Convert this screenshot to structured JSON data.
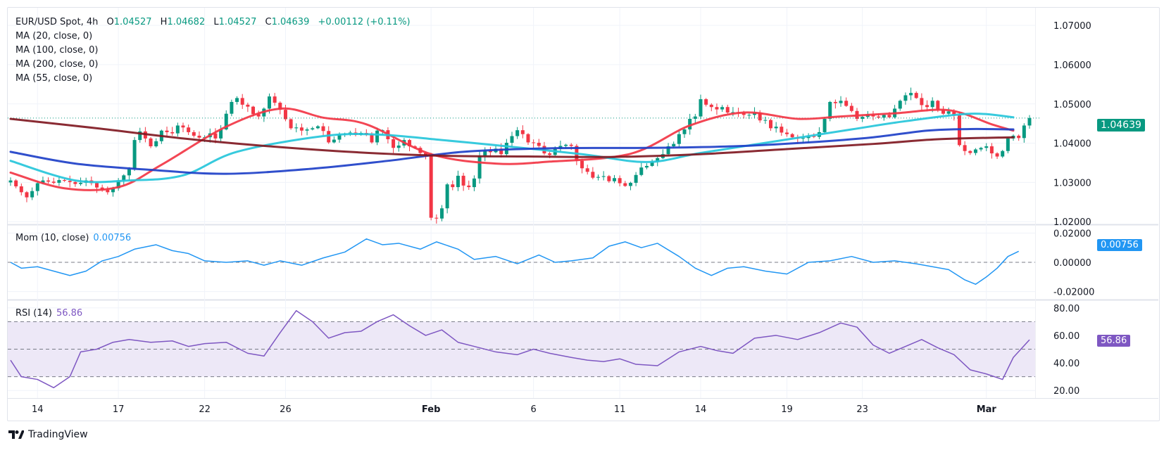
{
  "header": {
    "symbol": "EUR/USD Spot, 4h",
    "open_label": "O",
    "open": "1.04527",
    "high_label": "H",
    "high": "1.04682",
    "low_label": "L",
    "low": "1.04527",
    "close_label": "C",
    "close": "1.04639",
    "change": "+0.00112 (+0.11%)"
  },
  "legend": {
    "ma20": "MA (20, close, 0)",
    "ma100": "MA (100, close, 0)",
    "ma200": "MA (200, close, 0)",
    "ma55": "MA (55, close, 0)",
    "mom_label": "Mom (10, close)",
    "mom_value": "0.00756",
    "rsi_label": "RSI (14)",
    "rsi_value": "56.86"
  },
  "price_tags": {
    "last_price": "1.04639",
    "mom_last": "0.00756",
    "rsi_last": "56.86"
  },
  "colors": {
    "up": "#089981",
    "down": "#f23645",
    "ma20": "#f23645",
    "ma55": "#26c6da",
    "ma100": "#1e40c8",
    "ma200": "#801922",
    "mom": "#2196f3",
    "rsi": "#7e57c2",
    "rsi_band": "#ede8f7"
  },
  "footer": {
    "brand": "TradingView"
  },
  "chart_data": [
    {
      "type": "candlestick",
      "title": "EUR/USD Spot, 4h",
      "ylim": [
        1.02,
        1.073
      ],
      "yticks": [
        "1.07000",
        "1.06000",
        "1.05000",
        "1.04000",
        "1.03000",
        "1.02000"
      ],
      "ytick_values": [
        1.07,
        1.06,
        1.05,
        1.04,
        1.03,
        1.02
      ],
      "xticks": [
        "14",
        "17",
        "22",
        "26",
        "Feb",
        "6",
        "11",
        "14",
        "19",
        "23",
        "Mar"
      ],
      "xtick_index": [
        5,
        20,
        36,
        51,
        78,
        97,
        113,
        128,
        144,
        158,
        181
      ],
      "last_price": 1.04639,
      "close_series": [
        1.0305,
        1.029,
        1.0275,
        1.0262,
        1.0278,
        1.0298,
        1.0305,
        1.0302,
        1.0299,
        1.0306,
        1.0304,
        1.0301,
        1.0296,
        1.0299,
        1.0305,
        1.0298,
        1.0287,
        1.0281,
        1.0275,
        1.0285,
        1.0305,
        1.0318,
        1.0334,
        1.0408,
        1.043,
        1.0412,
        1.0392,
        1.0405,
        1.0432,
        1.0428,
        1.0425,
        1.0445,
        1.044,
        1.0428,
        1.0419,
        1.0414,
        1.0415,
        1.0425,
        1.0412,
        1.0435,
        1.0475,
        1.0505,
        1.0515,
        1.0498,
        1.0493,
        1.0474,
        1.0468,
        1.0488,
        1.0519,
        1.0503,
        1.0485,
        1.0461,
        1.0438,
        1.044,
        1.0432,
        1.0435,
        1.0438,
        1.0443,
        1.0431,
        1.0402,
        1.0409,
        1.0422,
        1.0424,
        1.0427,
        1.0421,
        1.0426,
        1.0421,
        1.0402,
        1.0432,
        1.0433,
        1.041,
        1.0388,
        1.0394,
        1.0408,
        1.0392,
        1.0388,
        1.0375,
        1.0368,
        1.021,
        1.0208,
        1.0234,
        1.0295,
        1.0288,
        1.0317,
        1.0292,
        1.0288,
        1.031,
        1.0368,
        1.0381,
        1.0377,
        1.0386,
        1.0372,
        1.0401,
        1.0418,
        1.0433,
        1.0423,
        1.0402,
        1.0401,
        1.0393,
        1.0374,
        1.037,
        1.0386,
        1.0393,
        1.0396,
        1.0393,
        1.0355,
        1.0336,
        1.0327,
        1.0312,
        1.0314,
        1.0316,
        1.0303,
        1.0311,
        1.0298,
        1.0291,
        1.0299,
        1.0319,
        1.0338,
        1.0342,
        1.0352,
        1.0362,
        1.0372,
        1.0392,
        1.0398,
        1.0423,
        1.0435,
        1.0462,
        1.0468,
        1.0512,
        1.0498,
        1.0492,
        1.0486,
        1.0492,
        1.0478,
        1.0479,
        1.0477,
        1.0472,
        1.0472,
        1.0478,
        1.0458,
        1.0459,
        1.0438,
        1.0442,
        1.0427,
        1.0423,
        1.0415,
        1.0412,
        1.0413,
        1.0418,
        1.0416,
        1.0428,
        1.0462,
        1.0505,
        1.0502,
        1.0508,
        1.0495,
        1.0482,
        1.0462,
        1.0467,
        1.0473,
        1.0468,
        1.0465,
        1.0472,
        1.0466,
        1.0488,
        1.0508,
        1.0522,
        1.0528,
        1.0515,
        1.0497,
        1.0492,
        1.0508,
        1.0485,
        1.0475,
        1.0481,
        1.0471,
        1.0395,
        1.038,
        1.0375,
        1.0384,
        1.0388,
        1.0392,
        1.0374,
        1.0366,
        1.038,
        1.0412,
        1.0419,
        1.0413,
        1.0445,
        1.0464
      ],
      "series": [
        {
          "name": "MA (20, close, 0)",
          "color": "#f23645",
          "points": [
            [
              0,
              1.0325
            ],
            [
              10,
              1.0285
            ],
            [
              20,
              1.0288
            ],
            [
              28,
              1.0345
            ],
            [
              40,
              1.0442
            ],
            [
              50,
              1.0488
            ],
            [
              58,
              1.0465
            ],
            [
              66,
              1.0448
            ],
            [
              78,
              1.0372
            ],
            [
              90,
              1.0348
            ],
            [
              100,
              1.0353
            ],
            [
              115,
              1.0373
            ],
            [
              126,
              1.0445
            ],
            [
              136,
              1.0478
            ],
            [
              146,
              1.0462
            ],
            [
              154,
              1.0468
            ],
            [
              164,
              1.0476
            ],
            [
              174,
              1.0484
            ],
            [
              182,
              1.0448
            ],
            [
              186,
              1.0432
            ]
          ]
        },
        {
          "name": "MA (55, close, 0)",
          "color": "#26c6da",
          "points": [
            [
              0,
              1.0355
            ],
            [
              12,
              1.0305
            ],
            [
              22,
              1.0305
            ],
            [
              32,
              1.0318
            ],
            [
              42,
              1.0378
            ],
            [
              58,
              1.0418
            ],
            [
              68,
              1.0422
            ],
            [
              80,
              1.0408
            ],
            [
              92,
              1.0392
            ],
            [
              106,
              1.0372
            ],
            [
              118,
              1.0352
            ],
            [
              128,
              1.0375
            ],
            [
              142,
              1.0405
            ],
            [
              156,
              1.0435
            ],
            [
              166,
              1.0456
            ],
            [
              178,
              1.0475
            ],
            [
              186,
              1.0466
            ]
          ]
        },
        {
          "name": "MA (100, close, 0)",
          "color": "#1e40c8",
          "points": [
            [
              0,
              1.0378
            ],
            [
              12,
              1.0348
            ],
            [
              26,
              1.0332
            ],
            [
              40,
              1.0322
            ],
            [
              56,
              1.0335
            ],
            [
              70,
              1.0355
            ],
            [
              84,
              1.0378
            ],
            [
              100,
              1.0387
            ],
            [
              118,
              1.0388
            ],
            [
              134,
              1.0392
            ],
            [
              148,
              1.0402
            ],
            [
              160,
              1.0415
            ],
            [
              170,
              1.0432
            ],
            [
              178,
              1.0436
            ],
            [
              186,
              1.0435
            ]
          ]
        },
        {
          "name": "MA (200, close, 0)",
          "color": "#801922",
          "points": [
            [
              0,
              1.0462
            ],
            [
              16,
              1.0438
            ],
            [
              32,
              1.0412
            ],
            [
              48,
              1.0392
            ],
            [
              64,
              1.0377
            ],
            [
              80,
              1.0368
            ],
            [
              96,
              1.0366
            ],
            [
              112,
              1.0365
            ],
            [
              128,
              1.0372
            ],
            [
              144,
              1.0385
            ],
            [
              160,
              1.0398
            ],
            [
              172,
              1.041
            ],
            [
              186,
              1.0415
            ]
          ]
        }
      ]
    },
    {
      "type": "line",
      "title": "Mom (10, close)",
      "ylim": [
        -0.025,
        0.025
      ],
      "yticks": [
        "0.02000",
        "0.00000",
        "-0.02000"
      ],
      "ytick_values": [
        0.02,
        0.0,
        -0.02
      ],
      "last_value": 0.00756,
      "series": [
        {
          "name": "Mom (10, close)",
          "color": "#2196f3",
          "points": [
            [
              0,
              0.0
            ],
            [
              2,
              -0.004
            ],
            [
              5,
              -0.003
            ],
            [
              8,
              -0.006
            ],
            [
              11,
              -0.009
            ],
            [
              14,
              -0.006
            ],
            [
              17,
              0.001
            ],
            [
              20,
              0.004
            ],
            [
              23,
              0.009
            ],
            [
              27,
              0.012
            ],
            [
              30,
              0.008
            ],
            [
              33,
              0.006
            ],
            [
              36,
              0.001
            ],
            [
              40,
              0.0
            ],
            [
              44,
              0.001
            ],
            [
              47,
              -0.002
            ],
            [
              50,
              0.001
            ],
            [
              54,
              -0.002
            ],
            [
              58,
              0.003
            ],
            [
              62,
              0.007
            ],
            [
              66,
              0.016
            ],
            [
              69,
              0.012
            ],
            [
              72,
              0.013
            ],
            [
              76,
              0.009
            ],
            [
              79,
              0.014
            ],
            [
              83,
              0.009
            ],
            [
              86,
              0.002
            ],
            [
              90,
              0.004
            ],
            [
              94,
              -0.001
            ],
            [
              98,
              0.005
            ],
            [
              101,
              0.0
            ],
            [
              104,
              0.001
            ],
            [
              108,
              0.003
            ],
            [
              111,
              0.011
            ],
            [
              114,
              0.014
            ],
            [
              117,
              0.01
            ],
            [
              120,
              0.013
            ],
            [
              124,
              0.004
            ],
            [
              127,
              -0.004
            ],
            [
              130,
              -0.009
            ],
            [
              133,
              -0.004
            ],
            [
              136,
              -0.003
            ],
            [
              140,
              -0.006
            ],
            [
              144,
              -0.008
            ],
            [
              148,
              0.0
            ],
            [
              152,
              0.001
            ],
            [
              156,
              0.004
            ],
            [
              160,
              0.0
            ],
            [
              164,
              0.001
            ],
            [
              168,
              -0.001
            ],
            [
              171,
              -0.003
            ],
            [
              174,
              -0.005
            ],
            [
              177,
              -0.012
            ],
            [
              179,
              -0.015
            ],
            [
              181,
              -0.01
            ],
            [
              183,
              -0.004
            ],
            [
              185,
              0.004
            ],
            [
              187,
              0.00756
            ]
          ]
        }
      ]
    },
    {
      "type": "line",
      "title": "RSI (14)",
      "ylim": [
        15,
        85
      ],
      "yticks": [
        "80.00",
        "60.00",
        "40.00",
        "20.00"
      ],
      "ytick_values": [
        80,
        60,
        40,
        20
      ],
      "bands": [
        30,
        50,
        70
      ],
      "last_value": 56.86,
      "series": [
        {
          "name": "RSI (14)",
          "color": "#7e57c2",
          "points": [
            [
              0,
              42
            ],
            [
              2,
              30
            ],
            [
              5,
              28
            ],
            [
              8,
              22
            ],
            [
              11,
              30
            ],
            [
              13,
              48
            ],
            [
              16,
              50
            ],
            [
              19,
              55
            ],
            [
              22,
              57
            ],
            [
              26,
              55
            ],
            [
              30,
              56
            ],
            [
              33,
              52
            ],
            [
              36,
              54
            ],
            [
              40,
              55
            ],
            [
              44,
              47
            ],
            [
              47,
              45
            ],
            [
              50,
              62
            ],
            [
              53,
              78
            ],
            [
              56,
              70
            ],
            [
              59,
              58
            ],
            [
              62,
              62
            ],
            [
              65,
              63
            ],
            [
              68,
              70
            ],
            [
              71,
              75
            ],
            [
              74,
              67
            ],
            [
              77,
              60
            ],
            [
              80,
              64
            ],
            [
              83,
              55
            ],
            [
              86,
              52
            ],
            [
              90,
              48
            ],
            [
              94,
              46
            ],
            [
              97,
              50
            ],
            [
              100,
              47
            ],
            [
              104,
              44
            ],
            [
              107,
              42
            ],
            [
              110,
              41
            ],
            [
              113,
              43
            ],
            [
              116,
              39
            ],
            [
              120,
              38
            ],
            [
              124,
              48
            ],
            [
              128,
              52
            ],
            [
              131,
              49
            ],
            [
              134,
              47
            ],
            [
              138,
              58
            ],
            [
              142,
              60
            ],
            [
              146,
              57
            ],
            [
              150,
              62
            ],
            [
              154,
              69
            ],
            [
              157,
              66
            ],
            [
              160,
              53
            ],
            [
              163,
              47
            ],
            [
              166,
              52
            ],
            [
              169,
              57
            ],
            [
              172,
              51
            ],
            [
              175,
              46
            ],
            [
              178,
              35
            ],
            [
              181,
              32
            ],
            [
              184,
              28
            ],
            [
              186,
              44
            ],
            [
              189,
              56.86
            ]
          ]
        }
      ]
    }
  ]
}
